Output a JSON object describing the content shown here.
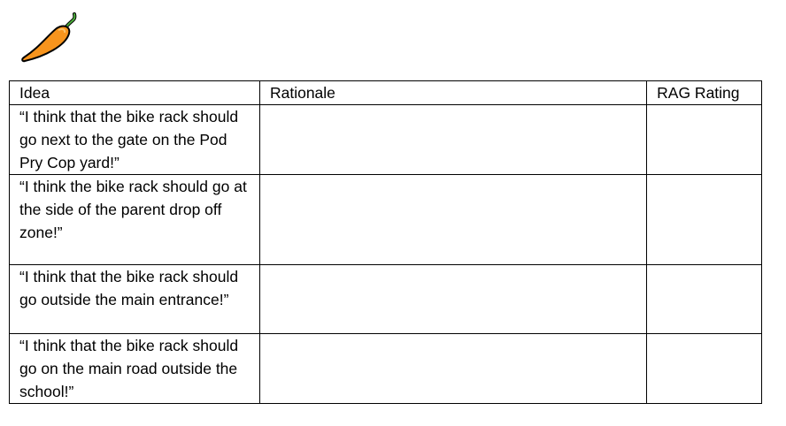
{
  "icon": {
    "name": "chili-pepper-icon",
    "color": "#f7941d"
  },
  "table": {
    "headers": [
      "Idea",
      "Rationale",
      "RAG Rating"
    ],
    "rows": [
      {
        "idea": " “I think that the bike rack should go next to the gate on the Pod Pry Cop yard!”",
        "rationale": "",
        "rag": ""
      },
      {
        "idea": "“I think the bike rack should go at the side of the parent drop off zone!”",
        "rationale": "",
        "rag": ""
      },
      {
        "idea": "“I think that the bike rack should go outside the main entrance!”",
        "rationale": "",
        "rag": ""
      },
      {
        "idea": "“I think that the bike rack should go on the main road outside the school!”",
        "rationale": "",
        "rag": ""
      }
    ]
  }
}
